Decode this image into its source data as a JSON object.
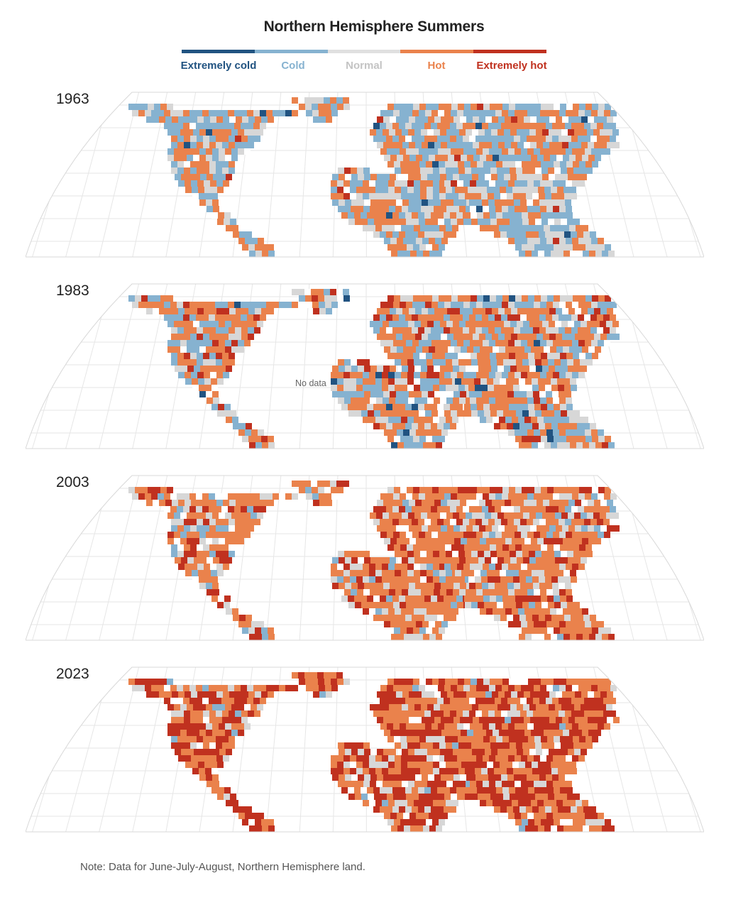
{
  "title": "Northern Hemisphere Summers",
  "legend": [
    {
      "label": "Extremely cold",
      "color": "#215381"
    },
    {
      "label": "Cold",
      "color": "#86b2d0"
    },
    {
      "label": "Normal",
      "color": "#d7d7d7"
    },
    {
      "label": "Hot",
      "color": "#ea824c"
    },
    {
      "label": "Extremely hot",
      "color": "#c0311f"
    }
  ],
  "panels": [
    {
      "year": "1963",
      "mix": [
        0.02,
        0.38,
        0.22,
        0.36,
        0.02
      ]
    },
    {
      "year": "1983",
      "mix": [
        0.02,
        0.28,
        0.18,
        0.42,
        0.1
      ]
    },
    {
      "year": "2003",
      "mix": [
        0.0,
        0.1,
        0.16,
        0.56,
        0.18
      ]
    },
    {
      "year": "2023",
      "mix": [
        0.0,
        0.03,
        0.1,
        0.45,
        0.42
      ]
    }
  ],
  "annotation": "No data",
  "note": "Note: Data for June-July-August, Northern Hemisphere land.",
  "colors": {
    "background": "#ffffff",
    "graticule": "#e6e6e6",
    "border": "#555555"
  }
}
